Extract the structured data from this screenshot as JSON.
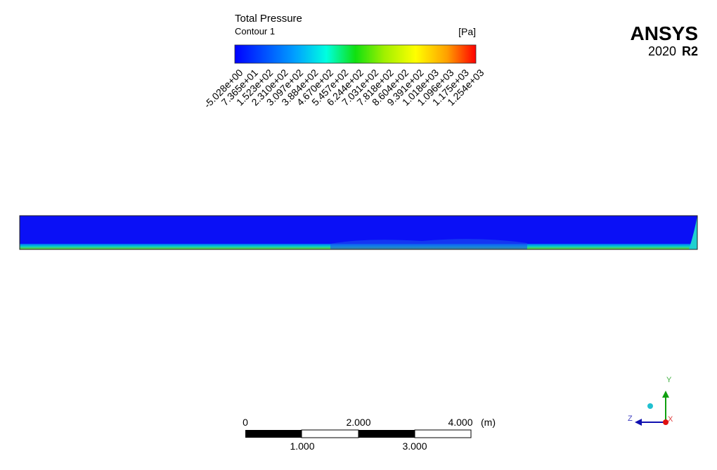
{
  "legend": {
    "title": "Total Pressure",
    "subtitle": "Contour 1",
    "unit": "[Pa]",
    "labels": [
      "-5.028e+00",
      "7.365e+01",
      "1.523e+02",
      "2.310e+02",
      "3.097e+02",
      "3.884e+02",
      "4.670e+02",
      "5.457e+02",
      "6.244e+02",
      "7.031e+02",
      "7.818e+02",
      "8.604e+02",
      "9.391e+02",
      "1.018e+03",
      "1.096e+03",
      "1.175e+03",
      "1.254e+03"
    ]
  },
  "brand": {
    "name": "ANSYS",
    "version": "2020",
    "release": "R2"
  },
  "scale_bar": {
    "top_labels": [
      "0",
      "2.000",
      "4.000"
    ],
    "unit": "(m)",
    "bottom_labels": [
      "1.000",
      "3.000"
    ]
  },
  "triad": {
    "y": "Y",
    "z": "Z",
    "x": "X"
  }
}
